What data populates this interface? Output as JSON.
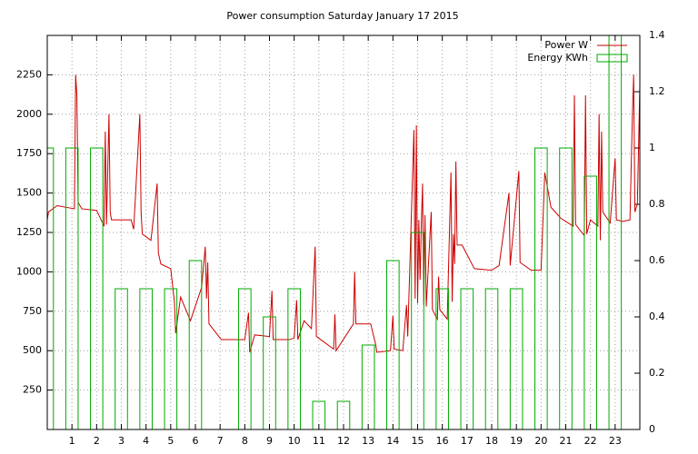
{
  "chart_data": {
    "type": "line",
    "title": "Power consumption Saturday January 17 2015",
    "xlim": [
      0,
      24
    ],
    "xticks": [
      1,
      2,
      3,
      4,
      5,
      6,
      7,
      8,
      9,
      10,
      11,
      12,
      13,
      14,
      15,
      16,
      17,
      18,
      19,
      20,
      21,
      22,
      23
    ],
    "ylim": [
      0,
      2500
    ],
    "yticks": [
      250,
      500,
      750,
      1000,
      1250,
      1500,
      1750,
      2000,
      2250
    ],
    "y2lim": [
      0,
      1.4
    ],
    "y2ticks": [
      0,
      0.2,
      0.4,
      0.6,
      0.8,
      1,
      1.2,
      1.4
    ],
    "grid": true,
    "legend": "top-right",
    "series": [
      {
        "name": "Power W",
        "color": "#cc0000",
        "type": "line",
        "x": [
          0,
          0.05,
          0.4,
          1.1,
          1.15,
          1.2,
          1.25,
          1.4,
          2.0,
          2.3,
          2.35,
          2.4,
          2.5,
          2.55,
          2.6,
          3.4,
          3.5,
          3.75,
          3.8,
          3.85,
          4.2,
          4.45,
          4.5,
          4.6,
          5.0,
          5.15,
          5.2,
          5.4,
          5.8,
          6.25,
          6.4,
          6.45,
          6.5,
          6.55,
          7.0,
          7.05,
          8.0,
          8.15,
          8.2,
          8.4,
          9.0,
          9.1,
          9.15,
          9.8,
          10.0,
          10.1,
          10.15,
          10.4,
          10.7,
          10.85,
          10.9,
          11.6,
          11.65,
          11.7,
          12.4,
          12.45,
          12.5,
          13.1,
          13.3,
          13.35,
          13.9,
          14.0,
          14.05,
          14.4,
          14.55,
          14.6,
          14.85,
          14.9,
          14.95,
          15.0,
          15.05,
          15.1,
          15.15,
          15.2,
          15.25,
          15.3,
          15.35,
          15.55,
          15.6,
          15.8,
          15.85,
          15.9,
          16.2,
          16.35,
          16.4,
          16.45,
          16.5,
          16.55,
          16.6,
          16.8,
          17.3,
          18.0,
          18.3,
          18.7,
          18.75,
          19.1,
          19.15,
          19.6,
          20.0,
          20.15,
          20.4,
          20.8,
          21.3,
          21.35,
          21.4,
          21.75,
          21.8,
          21.85,
          22.0,
          22.3,
          22.35,
          22.4,
          22.45,
          22.5,
          22.8,
          23.0,
          23.05,
          23.3,
          23.6,
          23.7,
          23.75,
          23.8,
          23.9,
          24
        ],
        "values": [
          1330,
          1380,
          1420,
          1400,
          2250,
          2120,
          1440,
          1400,
          1390,
          1290,
          1890,
          1300,
          2000,
          1380,
          1330,
          1330,
          1270,
          2000,
          1380,
          1240,
          1200,
          1560,
          1120,
          1050,
          1020,
          810,
          610,
          840,
          690,
          900,
          1160,
          830,
          1060,
          670,
          580,
          570,
          570,
          740,
          490,
          600,
          590,
          880,
          570,
          570,
          580,
          820,
          570,
          690,
          640,
          1160,
          590,
          510,
          730,
          500,
          670,
          1000,
          670,
          670,
          540,
          490,
          500,
          720,
          510,
          500,
          790,
          590,
          1900,
          830,
          1930,
          800,
          1330,
          950,
          1300,
          1560,
          790,
          1360,
          780,
          1380,
          760,
          700,
          970,
          760,
          700,
          1630,
          810,
          1240,
          1050,
          1700,
          1170,
          1170,
          1020,
          1010,
          1040,
          1500,
          1040,
          1640,
          1060,
          1010,
          1010,
          1630,
          1410,
          1340,
          1290,
          2120,
          1300,
          1230,
          2120,
          1240,
          1330,
          1290,
          2000,
          1200,
          1890,
          1380,
          1310,
          1720,
          1330,
          1320,
          1330,
          2000,
          2250,
          1380,
          1430,
          2180
        ]
      },
      {
        "name": "Energy KWh",
        "color": "#00aa00",
        "type": "bar",
        "axis": "y2",
        "x": [
          0,
          1,
          2,
          3,
          4,
          5,
          6,
          7,
          8,
          9,
          10,
          11,
          12,
          13,
          14,
          15,
          16,
          17,
          18,
          19,
          20,
          21,
          22,
          23
        ],
        "values": [
          1.0,
          1.0,
          1.0,
          0.5,
          0.5,
          0.5,
          0.6,
          0,
          0.5,
          0.4,
          0.5,
          0.1,
          0.1,
          0.3,
          0.6,
          0.7,
          0.5,
          0.5,
          0.5,
          0.5,
          1.0,
          1.0,
          0.9,
          1.4
        ]
      }
    ]
  }
}
